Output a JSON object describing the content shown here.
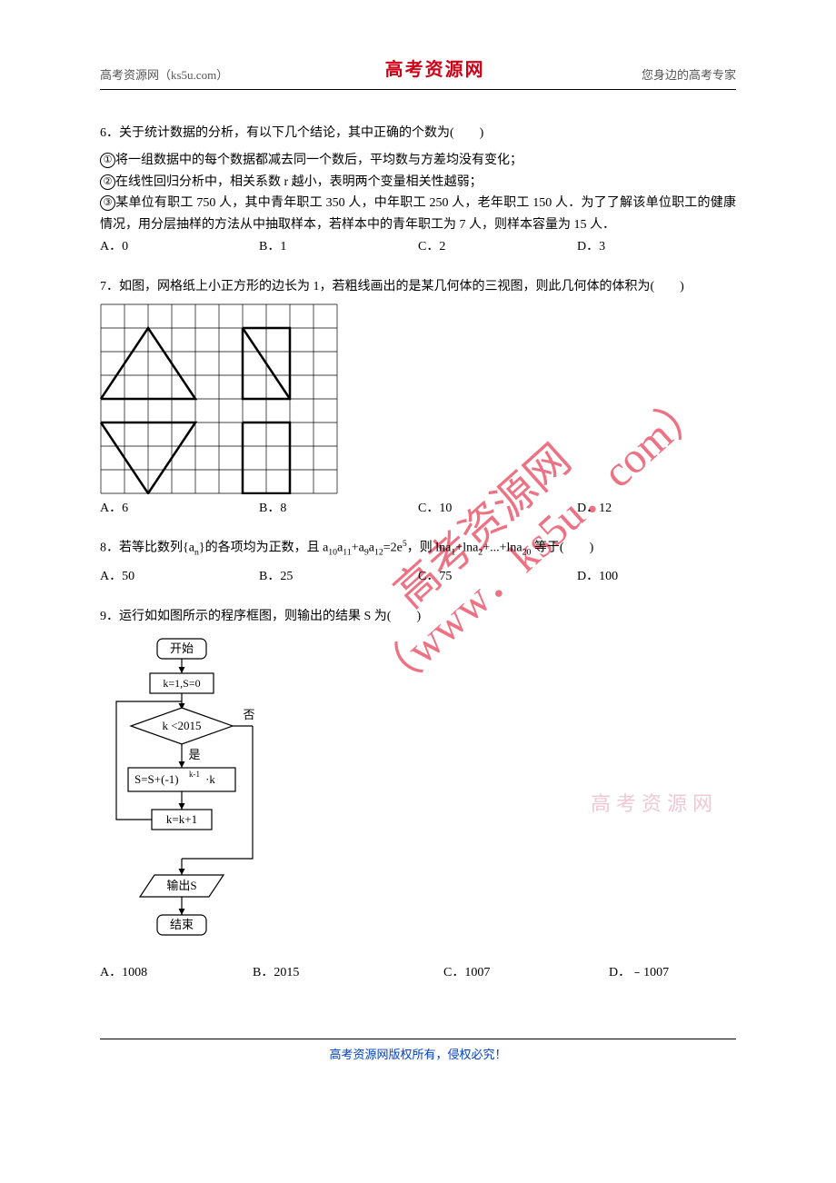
{
  "header": {
    "left": "高考资源网（ks5u.com）",
    "center": "高考资源网",
    "right": "您身边的高考专家"
  },
  "q6": {
    "stem": "6．关于统计数据的分析，有以下几个结论，其中正确的个数为(　　)",
    "line1_num": "①",
    "line1": "将一组数据中的每个数据都减去同一个数后，平均数与方差均没有变化；",
    "line2_num": "②",
    "line2": "在线性回归分析中，相关系数 r 越小，表明两个变量相关性越弱；",
    "line3_num": "③",
    "line3": "某单位有职工 750 人，其中青年职工 350 人，中年职工 250 人，老年职工 150 人．为了了解该单位职工的健康情况，用分层抽样的方法从中抽取样本，若样本中的青年职工为 7 人，则样本容量为 15 人．",
    "optA": "A．0",
    "optB": "B．1",
    "optC": "C．2",
    "optD": "D．3"
  },
  "q7": {
    "stem": "7．如图，网格纸上小正方形的边长为 1，若粗线画出的是某几何体的三视图，则此几何体的体积为(　　)",
    "optA": "A．6",
    "optB": "B．8",
    "optC": "C．10",
    "optD": "D．12",
    "grid": {
      "cols": 10,
      "rows": 8,
      "cell": 26,
      "gridColor": "#000000",
      "gridStroke": 0.7,
      "boldStroke": 2.5,
      "boldColor": "#000000",
      "shape1": [
        [
          0,
          4
        ],
        [
          2,
          1
        ],
        [
          4,
          4
        ],
        [
          0,
          4
        ]
      ],
      "shape2_rect": [
        [
          6,
          1
        ],
        [
          8,
          1
        ],
        [
          8,
          4
        ],
        [
          6,
          4
        ],
        [
          6,
          1
        ]
      ],
      "shape2_diag": [
        [
          6,
          1
        ],
        [
          8,
          4
        ]
      ],
      "shape3": [
        [
          0,
          5
        ],
        [
          4,
          5
        ],
        [
          2,
          8
        ],
        [
          0,
          5
        ]
      ],
      "shape3_inner": [
        [
          0,
          5
        ],
        [
          2,
          8
        ]
      ],
      "shape4_rect": [
        [
          6,
          5
        ],
        [
          8,
          5
        ],
        [
          8,
          8
        ],
        [
          6,
          8
        ],
        [
          6,
          5
        ]
      ]
    }
  },
  "q8": {
    "stem_pre": "8．若等比数列{a",
    "stem_sub1": "n",
    "stem_mid1": "}的各项均为正数，且 a",
    "stem_s10": "10",
    "stem_a": "a",
    "stem_s11": "11",
    "stem_plus": "+a",
    "stem_s9": "9",
    "stem_s12": "12",
    "stem_eq": "=2e",
    "stem_sup5": "5",
    "stem_mid2": "，则 lna",
    "stem_s1": "1",
    "stem_mid3": "+lna",
    "stem_s2": "2",
    "stem_mid4": "+...+lna",
    "stem_s20": "20",
    "stem_tail": " 等于(　　)",
    "optA": "A．50",
    "optB": "B．25",
    "optC": "C．75",
    "optD": "D．100"
  },
  "q9": {
    "stem": "9．运行如如图所示的程序框图，则输出的结果 S 为(　　)",
    "flow": {
      "start": "开始",
      "init": "k=1,S=0",
      "cond": "k <2015",
      "no": "否",
      "yes": "是",
      "body_pre": "S=S+(-1)",
      "body_sup": "k-1",
      "body_post": "·k",
      "inc": "k=k+1",
      "out": "输出S",
      "end": "结束",
      "stroke": "#000000",
      "strokeW": 1.2,
      "fill": "#ffffff",
      "font": 13
    },
    "optA": "A．1008",
    "optB": "B．2015",
    "optC": "C．1007",
    "optD": "D．﹣1007"
  },
  "watermark": {
    "url_line1": "高考资源网",
    "url_line2": "（www．ks5u．com）",
    "side": "高考资源网"
  },
  "footer": "高考资源网版权所有，侵权必究！"
}
